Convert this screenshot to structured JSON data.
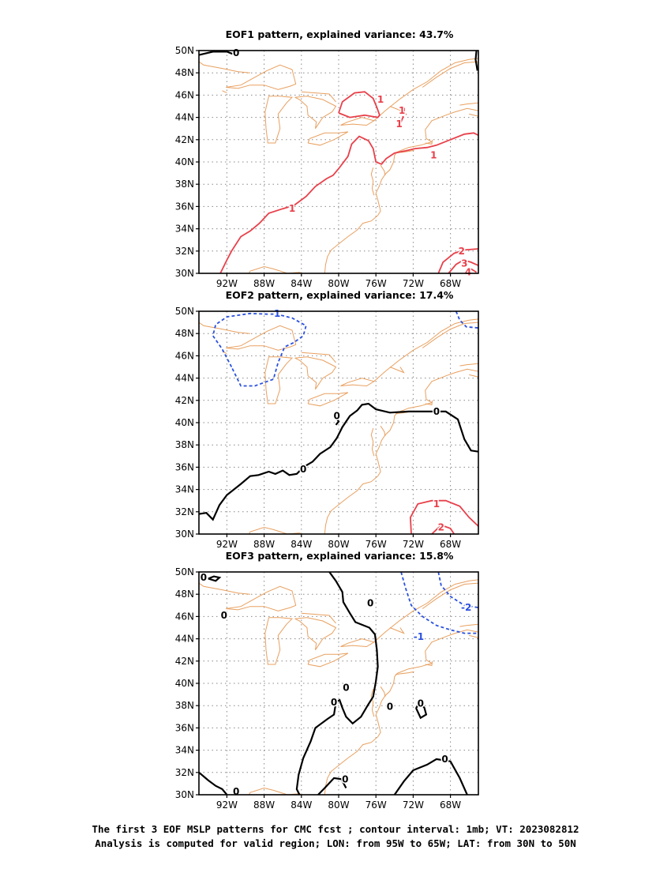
{
  "colors": {
    "coastline": "#e8a060",
    "positive_contour": "#e8404a",
    "negative_contour": "#2a50e0",
    "zero_contour": "#000000",
    "grid": "#888888"
  },
  "axes": {
    "x_ticks": [
      "92W",
      "88W",
      "84W",
      "80W",
      "76W",
      "72W",
      "68W"
    ],
    "y_ticks": [
      "30N",
      "32N",
      "34N",
      "36N",
      "38N",
      "40N",
      "42N",
      "44N",
      "46N",
      "48N",
      "50N"
    ]
  },
  "panels": [
    {
      "title": "EOF1 pattern, explained variance: 43.7%",
      "contour_labels": [
        {
          "text": "0",
          "color": "zero"
        },
        {
          "text": "1",
          "color": "positive"
        },
        {
          "text": "1",
          "color": "positive"
        },
        {
          "text": "1",
          "color": "positive"
        },
        {
          "text": "1",
          "color": "positive"
        },
        {
          "text": "1",
          "color": "positive"
        },
        {
          "text": "1",
          "color": "positive"
        },
        {
          "text": "2",
          "color": "positive"
        },
        {
          "text": "3",
          "color": "positive"
        },
        {
          "text": "4",
          "color": "positive"
        }
      ]
    },
    {
      "title": "EOF2 pattern, explained variance: 17.4%",
      "contour_labels": [
        {
          "text": "-1",
          "color": "negative"
        },
        {
          "text": "0",
          "color": "zero"
        },
        {
          "text": "0",
          "color": "zero"
        },
        {
          "text": "0",
          "color": "zero"
        },
        {
          "text": "1",
          "color": "positive"
        },
        {
          "text": "2",
          "color": "positive"
        }
      ]
    },
    {
      "title": "EOF3 pattern, explained variance: 15.8%",
      "contour_labels": [
        {
          "text": "0",
          "color": "zero"
        },
        {
          "text": "0",
          "color": "zero"
        },
        {
          "text": "0",
          "color": "zero"
        },
        {
          "text": "0",
          "color": "zero"
        },
        {
          "text": "0",
          "color": "zero"
        },
        {
          "text": "0",
          "color": "zero"
        },
        {
          "text": "0",
          "color": "zero"
        },
        {
          "text": "0",
          "color": "zero"
        },
        {
          "text": "0",
          "color": "zero"
        },
        {
          "text": "0",
          "color": "zero"
        },
        {
          "text": "-1",
          "color": "negative"
        },
        {
          "text": "-2",
          "color": "negative"
        }
      ]
    }
  ],
  "caption": {
    "line1": "The first 3 EOF MSLP patterns for CMC fcst ; contour interval: 1mb; VT: 2023082812",
    "line2": "Analysis is computed for valid region; LON: from 95W to 65W; LAT: from 30N to 50N"
  }
}
